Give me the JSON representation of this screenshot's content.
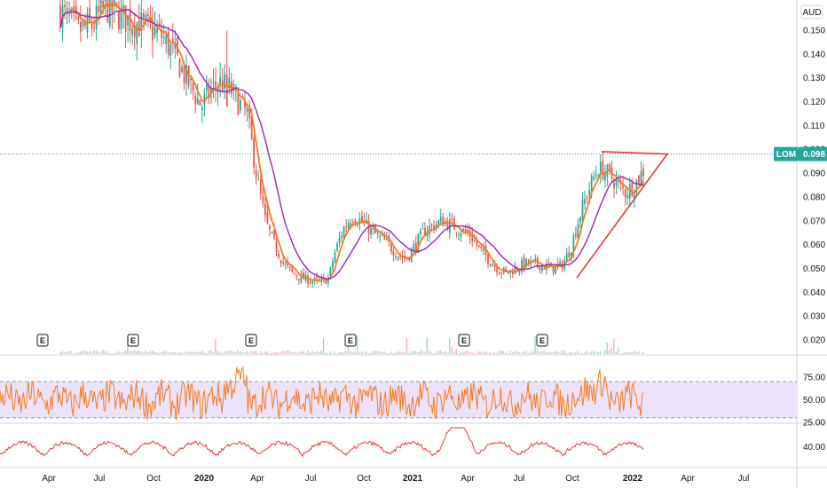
{
  "chart_data": [
    {
      "type": "candlestick",
      "symbol": "LOM",
      "currency": "AUD",
      "last_price": "0.098",
      "ylim": [
        0.01,
        0.165
      ],
      "y_ticks": [
        "0.150",
        "0.140",
        "0.130",
        "0.120",
        "0.110",
        "0.100",
        "0.090",
        "0.080",
        "0.070",
        "0.060",
        "0.050",
        "0.040",
        "0.030",
        "0.020"
      ],
      "x_ticks": [
        {
          "label": "Apr",
          "bold": false
        },
        {
          "label": "Jul",
          "bold": false
        },
        {
          "label": "Oct",
          "bold": false
        },
        {
          "label": "2020",
          "bold": true
        },
        {
          "label": "Apr",
          "bold": false
        },
        {
          "label": "Jul",
          "bold": false
        },
        {
          "label": "Oct",
          "bold": false
        },
        {
          "label": "2021",
          "bold": true
        },
        {
          "label": "Apr",
          "bold": false
        },
        {
          "label": "Jul",
          "bold": false
        },
        {
          "label": "Oct",
          "bold": false
        },
        {
          "label": "2022",
          "bold": true
        },
        {
          "label": "Apr",
          "bold": false
        },
        {
          "label": "Jul",
          "bold": false
        }
      ],
      "earnings_markers": [
        "E",
        "E",
        "E",
        "E",
        "E",
        "E"
      ],
      "price_path": [
        [
          0,
          0.158
        ],
        [
          4,
          0.15
        ],
        [
          7,
          0.152
        ],
        [
          10,
          0.16
        ],
        [
          14,
          0.155
        ],
        [
          18,
          0.152
        ],
        [
          22,
          0.148
        ],
        [
          25,
          0.14
        ],
        [
          27,
          0.132
        ],
        [
          29,
          0.125
        ],
        [
          31,
          0.118
        ],
        [
          33,
          0.125
        ],
        [
          35,
          0.128
        ],
        [
          37,
          0.126
        ],
        [
          39,
          0.12
        ],
        [
          41,
          0.115
        ],
        [
          43,
          0.09
        ],
        [
          45,
          0.07
        ],
        [
          47,
          0.06
        ],
        [
          49,
          0.052
        ],
        [
          51,
          0.048
        ],
        [
          53,
          0.046
        ],
        [
          55,
          0.045
        ],
        [
          57,
          0.044
        ],
        [
          59,
          0.046
        ],
        [
          60,
          0.055
        ],
        [
          62,
          0.066
        ],
        [
          64,
          0.072
        ],
        [
          66,
          0.07
        ],
        [
          68,
          0.066
        ],
        [
          70,
          0.063
        ],
        [
          72,
          0.06
        ],
        [
          74,
          0.056
        ],
        [
          76,
          0.054
        ],
        [
          78,
          0.06
        ],
        [
          80,
          0.066
        ],
        [
          82,
          0.068
        ],
        [
          84,
          0.07
        ],
        [
          86,
          0.068
        ],
        [
          88,
          0.066
        ],
        [
          90,
          0.064
        ],
        [
          92,
          0.058
        ],
        [
          94,
          0.054
        ],
        [
          96,
          0.05
        ],
        [
          98,
          0.048
        ],
        [
          100,
          0.05
        ],
        [
          102,
          0.052
        ],
        [
          104,
          0.052
        ],
        [
          106,
          0.051
        ],
        [
          108,
          0.05
        ],
        [
          110,
          0.051
        ],
        [
          112,
          0.058
        ],
        [
          114,
          0.072
        ],
        [
          116,
          0.083
        ],
        [
          118,
          0.092
        ],
        [
          120,
          0.09
        ],
        [
          122,
          0.086
        ],
        [
          124,
          0.082
        ],
        [
          126,
          0.085
        ],
        [
          128,
          0.091
        ]
      ],
      "series": [
        {
          "name": "",
          "color": "#f57c1f",
          "type": "line",
          "smoothing": 4
        },
        {
          "name": "",
          "color": "#9c27b0",
          "type": "line",
          "smoothing": 14
        }
      ],
      "triangle": {
        "color": "#e53935",
        "points": [
          [
            0.098
          ],
          [
            0.098
          ],
          [
            0.047
          ]
        ]
      },
      "up_color": "#26a69a",
      "down_color": "#ef5350",
      "dotted_price_line_color": "#26a69a"
    },
    {
      "type": "line",
      "name": "",
      "ylim": [
        25,
        90
      ],
      "y_ticks": [
        "75.00",
        "50.00",
        "25.00"
      ],
      "band": [
        30,
        70
      ],
      "band_color": "#ede2fb",
      "color": "#f57c1f"
    },
    {
      "type": "line",
      "name": "",
      "y_ticks": [
        "40.00"
      ],
      "color": "#e53935"
    }
  ]
}
